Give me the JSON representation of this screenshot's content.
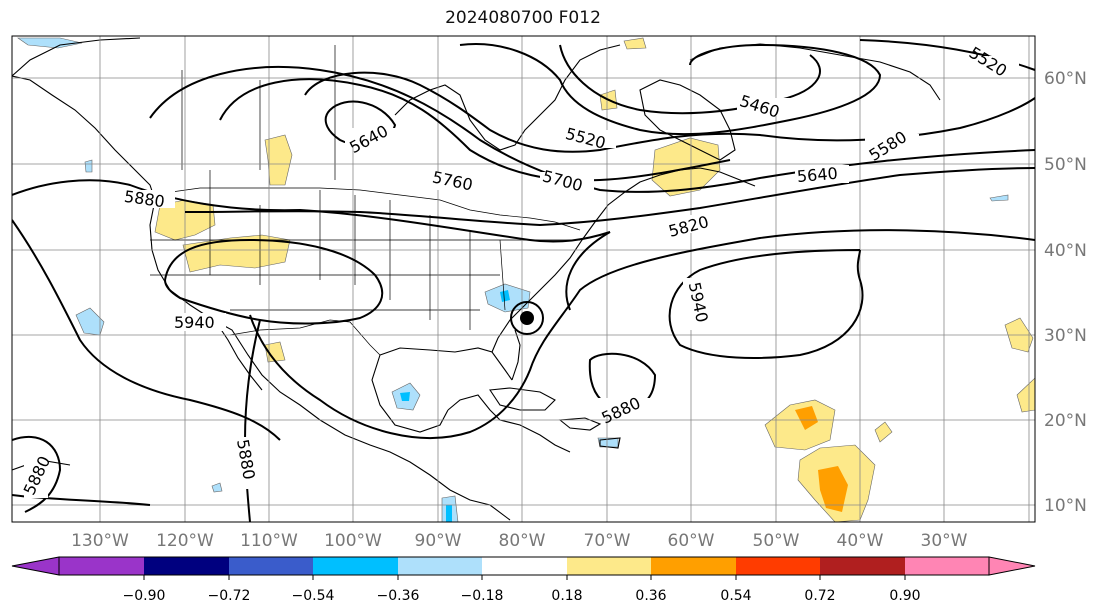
{
  "title": "2024080700 F012",
  "lon_labels": [
    "130°W",
    "120°W",
    "110°W",
    "100°W",
    "90°W",
    "80°W",
    "70°W",
    "60°W",
    "50°W",
    "40°W",
    "30°W"
  ],
  "lat_labels": [
    "60°N",
    "50°N",
    "40°N",
    "30°N",
    "20°N",
    "10°N"
  ],
  "contour_labels": [
    "5880",
    "5640",
    "5760",
    "5700",
    "5520",
    "5460",
    "5520",
    "5580",
    "5640",
    "5820",
    "5940",
    "5940",
    "5880",
    "5880",
    "5880"
  ],
  "colorbar": {
    "ticks": [
      "−0.90",
      "−0.72",
      "−0.54",
      "−0.36",
      "−0.18",
      "0.18",
      "0.36",
      "0.54",
      "0.72",
      "0.90"
    ],
    "colors": [
      "#9a34c9",
      "#00007f",
      "#3a5ccb",
      "#00bfff",
      "#aee0fb",
      "#ffffff",
      "#fde98a",
      "#ff9f00",
      "#ff3c00",
      "#b01f1f",
      "#ff85b4"
    ]
  }
}
